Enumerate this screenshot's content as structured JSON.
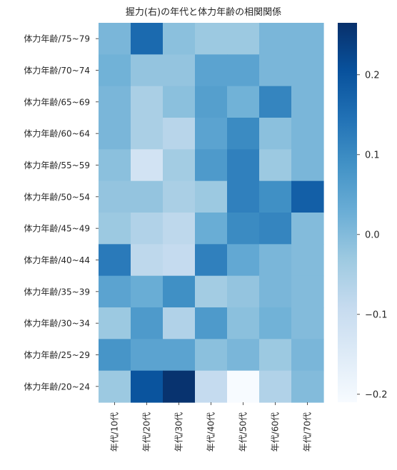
{
  "chart_data": {
    "type": "heatmap",
    "title": "握力(右)の年代と体力年齢の相関関係",
    "columns": [
      "年代/10代",
      "年代/20代",
      "年代/30代",
      "年代/40代",
      "年代/50代",
      "年代/60代",
      "年代/70代"
    ],
    "rows": [
      "体力年齢/75~79",
      "体力年齢/70~74",
      "体力年齢/65~69",
      "体力年齢/60~64",
      "体力年齢/55~59",
      "体力年齢/50~54",
      "体力年齢/45~49",
      "体力年齢/40~44",
      "体力年齢/35~39",
      "体力年齢/30~34",
      "体力年齢/25~29",
      "体力年齢/20~24"
    ],
    "values": [
      [
        0.01,
        0.16,
        -0.01,
        -0.03,
        -0.03,
        0.01,
        0.01
      ],
      [
        0.02,
        -0.02,
        -0.02,
        0.05,
        0.05,
        0.01,
        0.01
      ],
      [
        0.01,
        -0.05,
        -0.01,
        0.06,
        0.02,
        0.11,
        0.01
      ],
      [
        0.01,
        -0.05,
        -0.07,
        0.05,
        0.1,
        -0.01,
        0.01
      ],
      [
        -0.01,
        -0.12,
        -0.04,
        0.07,
        0.12,
        -0.03,
        0.01
      ],
      [
        -0.02,
        -0.02,
        -0.05,
        -0.03,
        0.12,
        0.09,
        0.18
      ],
      [
        -0.03,
        -0.06,
        -0.08,
        0.03,
        0.1,
        0.11,
        0.0
      ],
      [
        0.13,
        -0.08,
        -0.09,
        0.12,
        0.04,
        0.01,
        0.0
      ],
      [
        0.05,
        0.03,
        0.09,
        -0.04,
        -0.02,
        0.01,
        0.0
      ],
      [
        -0.03,
        0.07,
        -0.06,
        0.07,
        -0.01,
        0.02,
        0.0
      ],
      [
        0.08,
        0.05,
        0.05,
        -0.01,
        0.01,
        -0.03,
        0.01
      ],
      [
        -0.03,
        0.2,
        0.26,
        -0.09,
        -0.21,
        -0.06,
        0.0
      ]
    ],
    "vmin": -0.21,
    "vmax": 0.265,
    "colorbar_ticks": [
      0.2,
      0.1,
      0.0,
      -0.1,
      -0.2
    ],
    "colorbar_tick_labels": [
      "0.2",
      "0.1",
      "0.0",
      "−0.1",
      "−0.2"
    ],
    "colormap": "Blues",
    "colormap_stops": [
      "#f7fbff",
      "#deebf7",
      "#c6dbef",
      "#9ecae1",
      "#6baed6",
      "#4292c6",
      "#2171b5",
      "#08519c",
      "#08306b"
    ],
    "grid": false,
    "legend": "colorbar-right"
  }
}
